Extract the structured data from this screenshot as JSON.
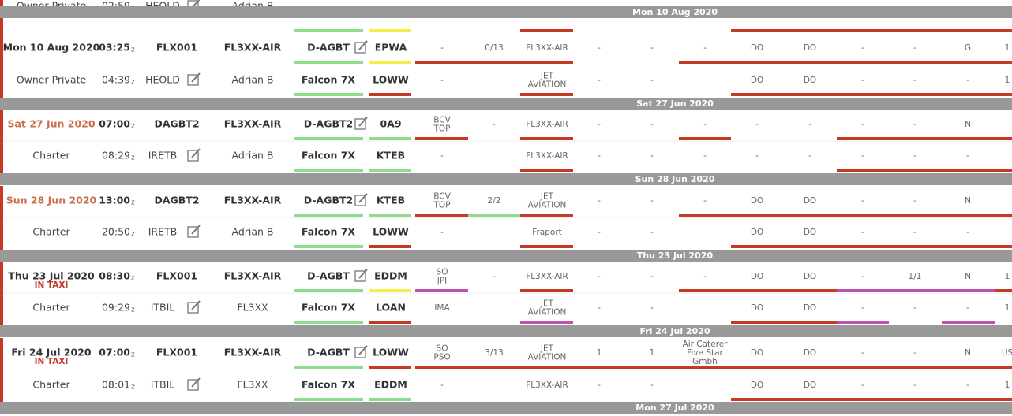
{
  "time_zone_marker": "z",
  "top_partial": {
    "cells": [
      "Owner Private",
      "02:59",
      "HEOLD",
      "Adrian B"
    ]
  },
  "separators": [
    "Mon 10 Aug 2020",
    "Sat 27 Jun 2020",
    "Sun 28 Jun 2020",
    "Thu 23 Jul 2020",
    "Fri 24 Jul 2020",
    "Mon 27 Jul 2020"
  ],
  "blocks": [
    {
      "date_color": "#333333",
      "rows": [
        {
          "cells": [
            "Mon 10 Aug 2020",
            "03:25",
            "FLX001",
            "FL3XX-AIR",
            "D-AGBT",
            "EPWA",
            "-",
            "0/13",
            "FL3XX-AIR",
            "-",
            "-",
            "-",
            "DO",
            "DO",
            "-",
            "-",
            "G",
            "1"
          ]
        },
        {
          "cells": [
            "Owner Private",
            "04:39",
            "HEOLD",
            "Adrian B",
            "Falcon 7X",
            "LOWW",
            "-",
            null,
            [
              "JET",
              "AVIATION"
            ],
            "-",
            "-",
            null,
            "DO",
            "DO",
            "-",
            "-",
            "-",
            "1"
          ]
        }
      ]
    },
    {
      "date_color": "#c9704a",
      "rows": [
        {
          "cells": [
            "Sat 27 Jun 2020",
            "07:00",
            "DAGBT2",
            "FL3XX-AIR",
            "D-AGBT2",
            "0A9",
            [
              "BCV",
              "TOP"
            ],
            "-",
            "FL3XX-AIR",
            "-",
            "-",
            "-",
            "-",
            "-",
            "-",
            "-",
            "N",
            null
          ]
        },
        {
          "cells": [
            "Charter",
            "08:29",
            "IRETB",
            "Adrian B",
            "Falcon 7X",
            "KTEB",
            "-",
            null,
            "FL3XX-AIR",
            "-",
            "-",
            "-",
            "-",
            "-",
            "-",
            "-",
            "-",
            null
          ]
        }
      ]
    },
    {
      "date_color": "#c9704a",
      "rows": [
        {
          "cells": [
            "Sun 28 Jun 2020",
            "13:00",
            "DAGBT2",
            "FL3XX-AIR",
            "D-AGBT2",
            "KTEB",
            [
              "BCV",
              "TOP"
            ],
            "2/2",
            [
              "JET",
              "AVIATION"
            ],
            "-",
            "-",
            "-",
            "DO",
            "DO",
            "-",
            "-",
            "N",
            null
          ]
        },
        {
          "cells": [
            "Charter",
            "20:50",
            "IRETB",
            "Adrian B",
            "Falcon 7X",
            "LOWW",
            "-",
            null,
            "Fraport",
            "-",
            "-",
            null,
            "DO",
            "DO",
            "-",
            "-",
            "-",
            null
          ]
        }
      ]
    },
    {
      "date_color": "#333333",
      "status": "IN TAXI",
      "status_color": "#c0392b",
      "rows": [
        {
          "cells": [
            "Thu 23 Jul 2020",
            "08:30",
            "FLX001",
            "FL3XX-AIR",
            "D-AGBT",
            "EDDM",
            [
              "SO",
              "JPI"
            ],
            "-",
            "FL3XX-AIR",
            "-",
            "-",
            "-",
            "DO",
            "DO",
            "-",
            "1/1",
            "N",
            "1"
          ]
        },
        {
          "cells": [
            "Charter",
            "09:29",
            "ITBIL",
            "FL3XX",
            "Falcon 7X",
            "LOAN",
            "IMA",
            null,
            [
              "JET",
              "AVIATION"
            ],
            "-",
            "-",
            null,
            "DO",
            "DO",
            "-",
            "-",
            "-",
            "1"
          ]
        }
      ]
    },
    {
      "date_color": "#333333",
      "status": "IN TAXI",
      "status_color": "#c0392b",
      "rows": [
        {
          "cells": [
            "Fri 24 Jul 2020",
            "07:00",
            "FLX001",
            "FL3XX-AIR",
            "D-AGBT",
            "LOWW",
            [
              "SO",
              "PSO"
            ],
            "3/13",
            [
              "JET",
              "AVIATION"
            ],
            "1",
            "1",
            [
              "Air Caterer",
              "Five Star",
              "Gmbh"
            ],
            "DO",
            "DO",
            "-",
            "-",
            "N",
            "US"
          ]
        },
        {
          "cells": [
            "Charter",
            "08:01",
            "ITBIL",
            "FL3XX",
            "Falcon 7X",
            "EDDM",
            "-",
            null,
            "FL3XX-AIR",
            "-",
            "-",
            null,
            "DO",
            "DO",
            "-",
            "-",
            "-",
            "1"
          ]
        }
      ]
    }
  ]
}
